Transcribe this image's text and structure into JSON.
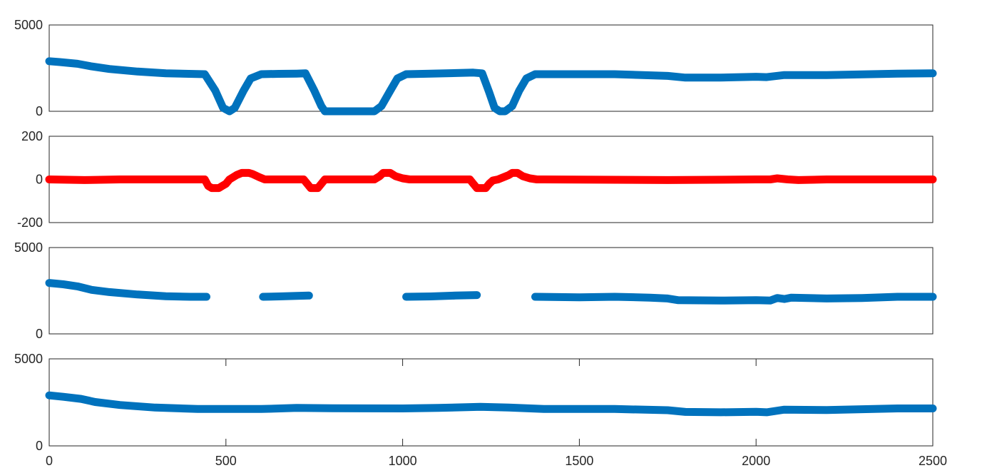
{
  "colors": {
    "blue": "#0072BD",
    "red": "#FF0000",
    "axis": "#262626"
  },
  "chart_data": [
    {
      "type": "line",
      "xlim": [
        0,
        2500
      ],
      "ylim": [
        0,
        5000
      ],
      "yticks": [
        "0",
        "5000"
      ],
      "grid": false,
      "series": [
        {
          "color": "#0072BD",
          "segments": [
            [
              [
                0,
                2900
              ],
              [
                30,
                2850
              ],
              [
                80,
                2750
              ],
              [
                120,
                2600
              ],
              [
                170,
                2450
              ],
              [
                250,
                2300
              ],
              [
                330,
                2200
              ],
              [
                440,
                2150
              ],
              [
                470,
                1200
              ],
              [
                492,
                200
              ],
              [
                510,
                0
              ],
              [
                525,
                200
              ],
              [
                550,
                1200
              ],
              [
                570,
                1900
              ],
              [
                600,
                2150
              ],
              [
                650,
                2170
              ],
              [
                700,
                2180
              ],
              [
                725,
                2200
              ],
              [
                750,
                1200
              ],
              [
                770,
                300
              ],
              [
                780,
                0
              ],
              [
                900,
                0
              ],
              [
                920,
                0
              ],
              [
                940,
                300
              ],
              [
                965,
                1200
              ],
              [
                985,
                1900
              ],
              [
                1010,
                2150
              ],
              [
                1080,
                2180
              ],
              [
                1200,
                2240
              ],
              [
                1225,
                2200
              ],
              [
                1245,
                1100
              ],
              [
                1260,
                200
              ],
              [
                1275,
                0
              ],
              [
                1290,
                0
              ],
              [
                1310,
                300
              ],
              [
                1330,
                1200
              ],
              [
                1350,
                1900
              ],
              [
                1375,
                2150
              ],
              [
                1500,
                2150
              ],
              [
                1600,
                2150
              ],
              [
                1750,
                2050
              ],
              [
                1800,
                1950
              ],
              [
                1900,
                1950
              ],
              [
                2000,
                2000
              ],
              [
                2030,
                1980
              ],
              [
                2080,
                2100
              ],
              [
                2200,
                2100
              ],
              [
                2400,
                2180
              ],
              [
                2500,
                2200
              ]
            ]
          ]
        }
      ]
    },
    {
      "type": "line",
      "xlim": [
        0,
        2500
      ],
      "ylim": [
        -200,
        200
      ],
      "yticks": [
        "-200",
        "0",
        "200"
      ],
      "grid": false,
      "series": [
        {
          "color": "#FF0000",
          "segments": [
            [
              [
                0,
                0
              ],
              [
                100,
                -3
              ],
              [
                200,
                0
              ],
              [
                300,
                0
              ],
              [
                430,
                0
              ],
              [
                440,
                0
              ],
              [
                450,
                -30
              ],
              [
                460,
                -40
              ],
              [
                480,
                -40
              ],
              [
                490,
                -30
              ],
              [
                500,
                -20
              ],
              [
                510,
                0
              ],
              [
                530,
                20
              ],
              [
                545,
                30
              ],
              [
                565,
                30
              ],
              [
                575,
                25
              ],
              [
                595,
                10
              ],
              [
                610,
                0
              ],
              [
                720,
                0
              ],
              [
                730,
                -20
              ],
              [
                740,
                -40
              ],
              [
                760,
                -40
              ],
              [
                770,
                -20
              ],
              [
                780,
                0
              ],
              [
                920,
                0
              ],
              [
                935,
                15
              ],
              [
                945,
                30
              ],
              [
                965,
                30
              ],
              [
                980,
                15
              ],
              [
                1000,
                5
              ],
              [
                1020,
                0
              ],
              [
                1190,
                0
              ],
              [
                1200,
                -20
              ],
              [
                1210,
                -40
              ],
              [
                1235,
                -40
              ],
              [
                1245,
                -20
              ],
              [
                1255,
                -5
              ],
              [
                1270,
                0
              ],
              [
                1285,
                10
              ],
              [
                1300,
                20
              ],
              [
                1310,
                30
              ],
              [
                1325,
                30
              ],
              [
                1340,
                15
              ],
              [
                1360,
                5
              ],
              [
                1380,
                0
              ],
              [
                1750,
                -3
              ],
              [
                2000,
                0
              ],
              [
                2040,
                0
              ],
              [
                2060,
                5
              ],
              [
                2090,
                0
              ],
              [
                2120,
                -3
              ],
              [
                2200,
                0
              ],
              [
                2500,
                0
              ]
            ]
          ]
        }
      ]
    },
    {
      "type": "line",
      "xlim": [
        0,
        2500
      ],
      "ylim": [
        0,
        5000
      ],
      "yticks": [
        "0",
        "5000"
      ],
      "grid": false,
      "series": [
        {
          "color": "#0072BD",
          "segments": [
            [
              [
                0,
                2950
              ],
              [
                40,
                2870
              ],
              [
                80,
                2750
              ],
              [
                120,
                2550
              ],
              [
                170,
                2420
              ],
              [
                250,
                2280
              ],
              [
                330,
                2180
              ],
              [
                400,
                2150
              ],
              [
                445,
                2150
              ]
            ],
            [
              [
                605,
                2150
              ],
              [
                650,
                2170
              ],
              [
                700,
                2200
              ],
              [
                735,
                2220
              ]
            ],
            [
              [
                1010,
                2150
              ],
              [
                1080,
                2170
              ],
              [
                1150,
                2220
              ],
              [
                1210,
                2250
              ]
            ],
            [
              [
                1375,
                2150
              ],
              [
                1500,
                2120
              ],
              [
                1600,
                2150
              ],
              [
                1700,
                2100
              ],
              [
                1750,
                2050
              ],
              [
                1780,
                1950
              ],
              [
                1900,
                1930
              ],
              [
                2000,
                1950
              ],
              [
                2040,
                1930
              ],
              [
                2060,
                2080
              ],
              [
                2080,
                2020
              ],
              [
                2100,
                2100
              ],
              [
                2200,
                2050
              ],
              [
                2300,
                2080
              ],
              [
                2400,
                2150
              ],
              [
                2500,
                2150
              ]
            ]
          ]
        }
      ]
    },
    {
      "type": "line",
      "xlim": [
        0,
        2500
      ],
      "ylim": [
        0,
        5000
      ],
      "yticks": [
        "0",
        "5000"
      ],
      "xticks": [
        "0",
        "500",
        "1000",
        "1500",
        "2000",
        "2500"
      ],
      "grid": false,
      "series": [
        {
          "color": "#0072BD",
          "segments": [
            [
              [
                0,
                2900
              ],
              [
                40,
                2820
              ],
              [
                90,
                2700
              ],
              [
                130,
                2520
              ],
              [
                200,
                2350
              ],
              [
                300,
                2200
              ],
              [
                420,
                2120
              ],
              [
                600,
                2120
              ],
              [
                700,
                2180
              ],
              [
                800,
                2160
              ],
              [
                1000,
                2150
              ],
              [
                1100,
                2180
              ],
              [
                1220,
                2240
              ],
              [
                1300,
                2200
              ],
              [
                1400,
                2120
              ],
              [
                1600,
                2120
              ],
              [
                1750,
                2050
              ],
              [
                1800,
                1950
              ],
              [
                1900,
                1930
              ],
              [
                2000,
                1960
              ],
              [
                2030,
                1930
              ],
              [
                2080,
                2080
              ],
              [
                2200,
                2060
              ],
              [
                2400,
                2150
              ],
              [
                2500,
                2150
              ]
            ]
          ]
        }
      ]
    }
  ]
}
